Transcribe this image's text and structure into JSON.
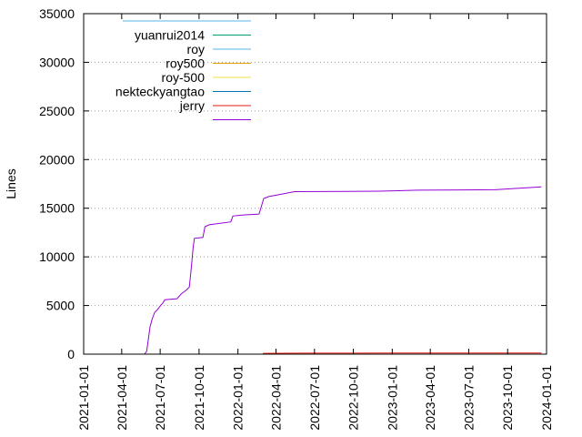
{
  "chart_data": {
    "type": "line",
    "title": "",
    "xlabel": "",
    "ylabel": "Lines",
    "x_scale": "time",
    "xlim": [
      "2021-01-01",
      "2024-01-01"
    ],
    "ylim": [
      0,
      35000
    ],
    "y_ticks": [
      0,
      5000,
      10000,
      15000,
      20000,
      25000,
      30000,
      35000
    ],
    "x_ticks": [
      "2021-01-01",
      "2021-04-01",
      "2021-07-01",
      "2021-10-01",
      "2022-01-01",
      "2022-04-01",
      "2022-07-01",
      "2022-10-01",
      "2023-01-01",
      "2023-04-01",
      "2023-07-01",
      "2023-10-01",
      "2024-01-01"
    ],
    "grid": true,
    "legend_position": "top-left",
    "series": [
      {
        "name": "",
        "color": "#56b4e9",
        "points": [
          [
            "2021-01-01",
            35000
          ],
          [
            "2023-12-20",
            35000
          ]
        ]
      },
      {
        "name": "yuanrui2014",
        "color": "#009e73",
        "points": []
      },
      {
        "name": "roy",
        "color": "#56b4e9",
        "points": []
      },
      {
        "name": "roy500",
        "color": "#e69f00",
        "points": []
      },
      {
        "name": "roy-500",
        "color": "#f0e442",
        "points": []
      },
      {
        "name": "nekteckyangtao",
        "color": "#0072b2",
        "points": []
      },
      {
        "name": "jerry",
        "color": "#e51e10",
        "points": [
          [
            "2022-03-01",
            80
          ],
          [
            "2022-06-01",
            100
          ],
          [
            "2023-01-01",
            110
          ],
          [
            "2023-06-01",
            120
          ],
          [
            "2023-12-20",
            120
          ]
        ]
      },
      {
        "name": "",
        "color": "#9400d3",
        "points": [
          [
            "2021-05-25",
            0
          ],
          [
            "2021-05-30",
            300
          ],
          [
            "2021-06-03",
            1500
          ],
          [
            "2021-06-07",
            2800
          ],
          [
            "2021-06-12",
            3600
          ],
          [
            "2021-06-18",
            4300
          ],
          [
            "2021-06-25",
            4600
          ],
          [
            "2021-07-02",
            5000
          ],
          [
            "2021-07-08",
            5300
          ],
          [
            "2021-07-12",
            5600
          ],
          [
            "2021-08-10",
            5700
          ],
          [
            "2021-08-20",
            6200
          ],
          [
            "2021-09-01",
            6600
          ],
          [
            "2021-09-08",
            6900
          ],
          [
            "2021-09-13",
            9000
          ],
          [
            "2021-09-17",
            11000
          ],
          [
            "2021-09-20",
            11900
          ],
          [
            "2021-10-10",
            12000
          ],
          [
            "2021-10-15",
            13100
          ],
          [
            "2021-10-25",
            13300
          ],
          [
            "2021-12-15",
            13600
          ],
          [
            "2021-12-20",
            14200
          ],
          [
            "2022-01-10",
            14300
          ],
          [
            "2022-02-20",
            14400
          ],
          [
            "2022-03-03",
            16000
          ],
          [
            "2022-03-15",
            16200
          ],
          [
            "2022-04-20",
            16500
          ],
          [
            "2022-05-15",
            16700
          ],
          [
            "2022-12-01",
            16750
          ],
          [
            "2023-01-15",
            16800
          ],
          [
            "2023-03-01",
            16850
          ],
          [
            "2023-09-01",
            16900
          ],
          [
            "2023-12-20",
            17200
          ]
        ]
      }
    ]
  }
}
